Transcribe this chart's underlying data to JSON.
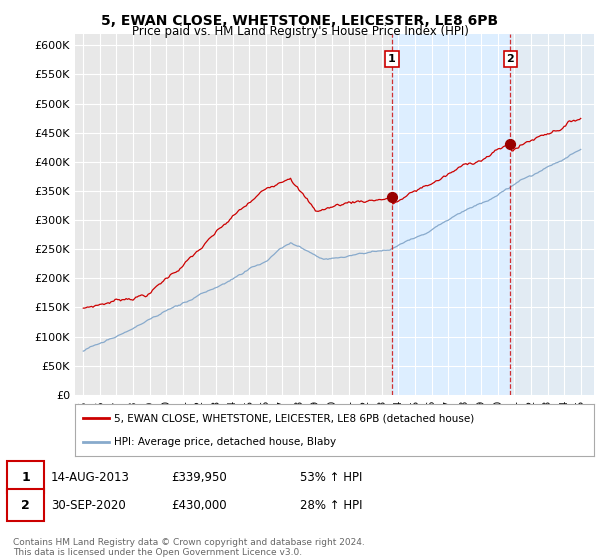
{
  "title": "5, EWAN CLOSE, WHETSTONE, LEICESTER, LE8 6PB",
  "subtitle": "Price paid vs. HM Land Registry's House Price Index (HPI)",
  "ylabel_ticks": [
    "£0",
    "£50K",
    "£100K",
    "£150K",
    "£200K",
    "£250K",
    "£300K",
    "£350K",
    "£400K",
    "£450K",
    "£500K",
    "£550K",
    "£600K"
  ],
  "ylim": [
    0,
    620000
  ],
  "yticks": [
    0,
    50000,
    100000,
    150000,
    200000,
    250000,
    300000,
    350000,
    400000,
    450000,
    500000,
    550000,
    600000
  ],
  "bg_color": "#ffffff",
  "plot_bg_color": "#e8e8e8",
  "highlight_color": "#ddeeff",
  "grid_color": "#ffffff",
  "sale1_date": 2013.62,
  "sale1_price": 339950,
  "sale1_label": "1",
  "sale2_date": 2020.75,
  "sale2_price": 430000,
  "sale2_label": "2",
  "sale1_info": "14-AUG-2013",
  "sale1_amount": "£339,950",
  "sale1_hpi": "53% ↑ HPI",
  "sale2_info": "30-SEP-2020",
  "sale2_amount": "£430,000",
  "sale2_hpi": "28% ↑ HPI",
  "legend_line1": "5, EWAN CLOSE, WHETSTONE, LEICESTER, LE8 6PB (detached house)",
  "legend_line2": "HPI: Average price, detached house, Blaby",
  "footer": "Contains HM Land Registry data © Crown copyright and database right 2024.\nThis data is licensed under the Open Government Licence v3.0.",
  "line_color_red": "#cc0000",
  "line_color_blue": "#88aacc",
  "marker_color_red": "#990000",
  "xlim_start": 1994.5,
  "xlim_end": 2025.8,
  "fig_width": 6.0,
  "fig_height": 5.6,
  "dpi": 100
}
